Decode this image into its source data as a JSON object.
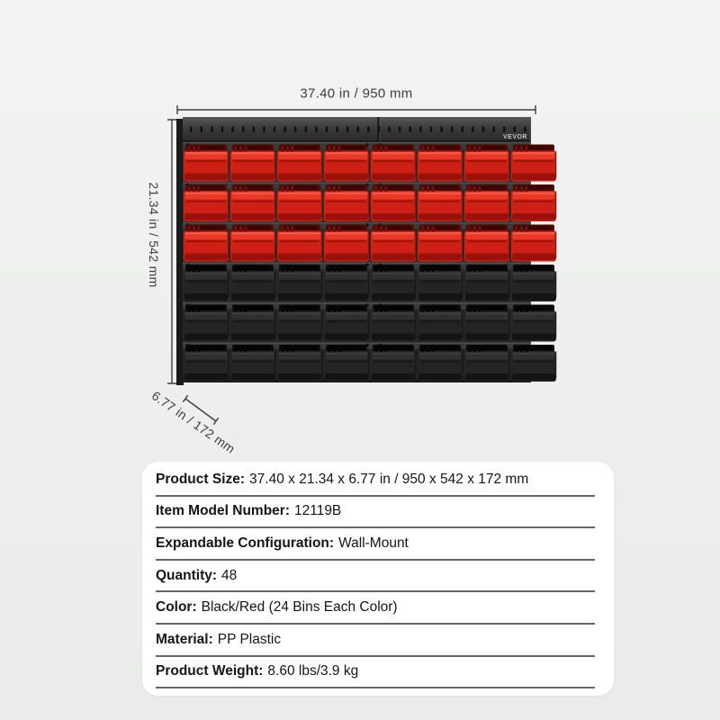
{
  "product_image": {
    "brand": "VEVOR",
    "annotations": {
      "width": "37.40 in / 950 mm",
      "height": "21.34 in / 542 mm",
      "depth": "6.77 in / 172 mm"
    },
    "bin_grid": {
      "red_rows": 3,
      "black_rows": 3,
      "bins_per_row": 8,
      "red_color": "#ce2014",
      "black_color": "#242424",
      "panel_color": "#2e2e2e"
    }
  },
  "specs": {
    "rows": [
      {
        "label": "Product Size:",
        "value": "37.40 x 21.34 x 6.77 in / 950 x 542 x 172 mm"
      },
      {
        "label": "Item Model Number:",
        "value": "12119B"
      },
      {
        "label": "Expandable Configuration:",
        "value": "Wall-Mount"
      },
      {
        "label": "Quantity:",
        "value": "48"
      },
      {
        "label": "Color:",
        "value": "Black/Red (24 Bins Each Color)"
      },
      {
        "label": "Material:",
        "value": "PP Plastic"
      },
      {
        "label": "Product Weight:",
        "value": "8.60 lbs/3.9 kg"
      }
    ]
  }
}
